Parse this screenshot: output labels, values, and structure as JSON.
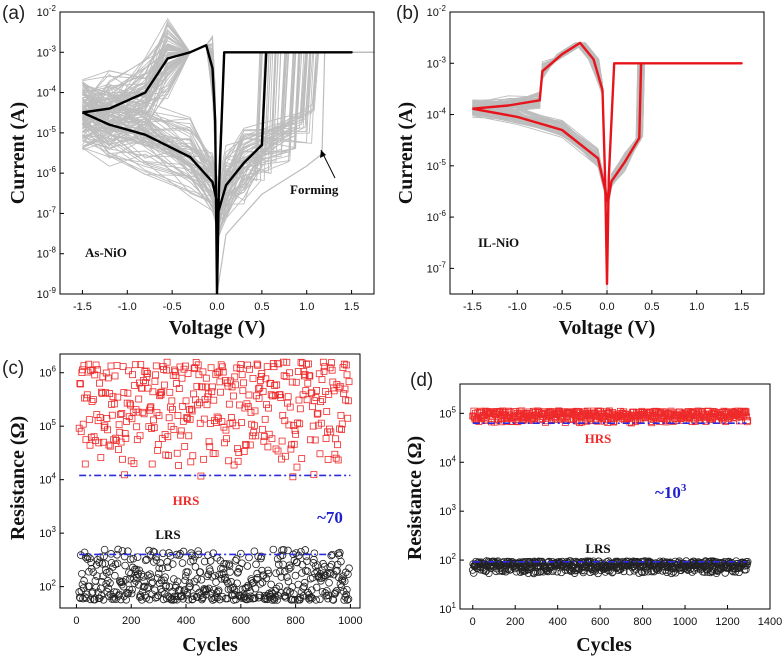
{
  "chart_data": [
    {
      "panel": "(a)",
      "type": "line",
      "xlabel": "Voltage (V)",
      "ylabel": "Current (A)",
      "xlim": [
        -1.75,
        1.75
      ],
      "ylim_log10": [
        -9,
        -2
      ],
      "x_ticks": [
        "-1.5",
        "-1.0",
        "-0.5",
        "0.0",
        "0.5",
        "1.0",
        "1.5"
      ],
      "y_ticks": [
        {
          "base": "10",
          "exp": "-2"
        },
        {
          "base": "10",
          "exp": "-3"
        },
        {
          "base": "10",
          "exp": "-4"
        },
        {
          "base": "10",
          "exp": "-5"
        },
        {
          "base": "10",
          "exp": "-6"
        },
        {
          "base": "10",
          "exp": "-7"
        },
        {
          "base": "10",
          "exp": "-8"
        },
        {
          "base": "10",
          "exp": "-9"
        }
      ],
      "label_text": "As-NiO",
      "annotation": "Forming",
      "colors": {
        "highlight": "#000000",
        "cycles": "#bdbdbd"
      },
      "series": [
        {
          "name": "representative-cycle",
          "points": [
            [
              -1.5,
              3.2e-05
            ],
            [
              -1.2,
              4e-05
            ],
            [
              -0.8,
              0.0001
            ],
            [
              -0.55,
              0.0007
            ],
            [
              -0.3,
              0.001
            ],
            [
              -0.12,
              0.0015
            ],
            [
              -0.05,
              0.0004
            ],
            [
              -0.02,
              2e-05
            ],
            [
              0.0,
              1e-09
            ],
            [
              0.02,
              3e-07
            ],
            [
              0.08,
              0.001
            ],
            [
              0.3,
              0.001
            ],
            [
              1.5,
              0.001
            ],
            [
              0.55,
              0.001
            ],
            [
              0.5,
              5e-06
            ],
            [
              0.3,
              1.8e-06
            ],
            [
              0.1,
              5e-07
            ],
            [
              0.02,
              1.2e-07
            ],
            [
              -0.05,
              6e-07
            ],
            [
              -0.3,
              2.5e-06
            ],
            [
              -0.8,
              9e-06
            ],
            [
              -1.2,
              1.6e-05
            ],
            [
              -1.5,
              3.2e-05
            ]
          ]
        },
        {
          "name": "forming",
          "points": [
            [
              0.0,
              1e-09
            ],
            [
              0.1,
              3e-08
            ],
            [
              0.5,
              3e-07
            ],
            [
              1.0,
              1.5e-06
            ],
            [
              1.17,
              3e-06
            ],
            [
              1.2,
              0.001
            ]
          ]
        }
      ]
    },
    {
      "panel": "(b)",
      "type": "line",
      "xlabel": "Voltage (V)",
      "ylabel": "Current (A)",
      "xlim": [
        -1.75,
        1.75
      ],
      "ylim_log10": [
        -7.5,
        -2
      ],
      "x_ticks": [
        "-1.5",
        "-1.0",
        "-0.5",
        "0.0",
        "0.5",
        "1.0",
        "1.5"
      ],
      "y_ticks": [
        {
          "base": "10",
          "exp": "-2"
        },
        {
          "base": "10",
          "exp": "-3"
        },
        {
          "base": "10",
          "exp": "-4"
        },
        {
          "base": "10",
          "exp": "-5"
        },
        {
          "base": "10",
          "exp": "-6"
        },
        {
          "base": "10",
          "exp": "-7"
        }
      ],
      "label_text": "IL-NiO",
      "colors": {
        "highlight": "#e8141b",
        "cycles": "#bdbdbd"
      },
      "series": [
        {
          "name": "representative-cycle",
          "points": [
            [
              -1.5,
              0.00013
            ],
            [
              -1.1,
              0.00015
            ],
            [
              -0.75,
              0.00019
            ],
            [
              -0.72,
              0.0007
            ],
            [
              -0.5,
              0.0015
            ],
            [
              -0.3,
              0.0025
            ],
            [
              -0.15,
              0.0012
            ],
            [
              -0.05,
              0.0003
            ],
            [
              -0.02,
              5e-06
            ],
            [
              0.0,
              5e-08
            ],
            [
              0.02,
              6e-06
            ],
            [
              0.08,
              0.001
            ],
            [
              0.3,
              0.001
            ],
            [
              1.5,
              0.001
            ],
            [
              0.38,
              0.001
            ],
            [
              0.36,
              3.5e-05
            ],
            [
              0.2,
              1.2e-05
            ],
            [
              0.05,
              5e-06
            ],
            [
              0.01,
              2e-06
            ],
            [
              -0.1,
              1.4e-05
            ],
            [
              -0.5,
              5e-05
            ],
            [
              -1.0,
              9e-05
            ],
            [
              -1.5,
              0.00013
            ]
          ]
        }
      ]
    },
    {
      "panel": "(c)",
      "type": "scatter",
      "xlabel": "Cycles",
      "ylabel": "Resistance (Ω)",
      "xlim": [
        -60,
        1035
      ],
      "ylim_log10": [
        1.6,
        6.35
      ],
      "x_ticks": [
        "0",
        "200",
        "400",
        "600",
        "800",
        "1000"
      ],
      "y_ticks": [
        {
          "base": "10",
          "exp": "2"
        },
        {
          "base": "10",
          "exp": "3"
        },
        {
          "base": "10",
          "exp": "4"
        },
        {
          "base": "10",
          "exp": "5"
        },
        {
          "base": "10",
          "exp": "6"
        }
      ],
      "series": [
        {
          "name": "HRS",
          "marker": "square",
          "color": "#ee2a2a",
          "n": 400,
          "x_range": [
            10,
            995
          ],
          "log10_range": [
            4.0,
            6.2
          ],
          "bias": 0.7
        },
        {
          "name": "LRS",
          "marker": "circle",
          "color": "#222222",
          "n": 500,
          "x_range": [
            10,
            995
          ],
          "log10_range": [
            1.75,
            2.7
          ],
          "bias": 0.3
        }
      ],
      "threshold_lines": [
        {
          "name": "HRS-min",
          "value": 12000,
          "x_from": 10,
          "x_to": 1000,
          "color": "#2b2bdd"
        },
        {
          "name": "LRS-max",
          "value": 400,
          "x_from": 10,
          "x_to": 930,
          "color": "#2b2bdd"
        }
      ],
      "labels": {
        "hrs": "HRS",
        "lrs": "LRS",
        "ratio": "~70"
      }
    },
    {
      "panel": "(d)",
      "type": "scatter",
      "xlabel": "Cycles",
      "ylabel": "Resistance (Ω)",
      "xlim": [
        -60,
        1400
      ],
      "ylim_log10": [
        1,
        5.6
      ],
      "x_ticks": [
        "0",
        "200",
        "400",
        "600",
        "800",
        "1000",
        "1200",
        "1400"
      ],
      "y_ticks": [
        {
          "base": "10",
          "exp": "1"
        },
        {
          "base": "10",
          "exp": "2"
        },
        {
          "base": "10",
          "exp": "3"
        },
        {
          "base": "10",
          "exp": "4"
        },
        {
          "base": "10",
          "exp": "5"
        }
      ],
      "series": [
        {
          "name": "HRS",
          "marker": "square",
          "color": "#ee2a2a",
          "n": 500,
          "x_range": [
            0,
            1295
          ],
          "log10_range": [
            4.8,
            5.05
          ],
          "bias": 0.5
        },
        {
          "name": "LRS",
          "marker": "circle",
          "color": "#222222",
          "n": 600,
          "x_range": [
            0,
            1295
          ],
          "log10_range": [
            1.72,
            1.98
          ],
          "bias": 0.5
        }
      ],
      "threshold_lines": [
        {
          "name": "HRS-min",
          "value": 63000,
          "x_from": 0,
          "x_to": 1290,
          "color": "#2b2bdd"
        },
        {
          "name": "LRS-max",
          "value": 92,
          "x_from": 0,
          "x_to": 1290,
          "color": "#2b2bdd"
        }
      ],
      "labels": {
        "hrs": "HRS",
        "lrs": "LRS",
        "ratio": "~10",
        "ratio_exp": "3"
      }
    }
  ]
}
